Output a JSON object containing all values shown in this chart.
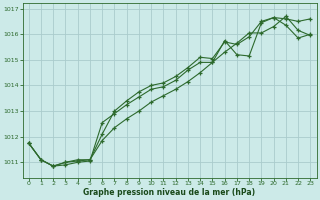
{
  "title": "Graphe pression niveau de la mer (hPa)",
  "bg_color": "#cceae8",
  "grid_color": "#aacccc",
  "line_color": "#2d6a2d",
  "xlabel_color": "#1a4a1a",
  "x_min": -0.5,
  "x_max": 23.5,
  "y_min": 1010.4,
  "y_max": 1017.2,
  "yticks": [
    1011,
    1012,
    1013,
    1014,
    1015,
    1016,
    1017
  ],
  "xticks": [
    0,
    1,
    2,
    3,
    4,
    5,
    6,
    7,
    8,
    9,
    10,
    11,
    12,
    13,
    14,
    15,
    16,
    17,
    18,
    19,
    20,
    21,
    22,
    23
  ],
  "series1_x": [
    0,
    1,
    2,
    3,
    4,
    5,
    6,
    7,
    8,
    9,
    10,
    11,
    12,
    13,
    14,
    15,
    16,
    17,
    18,
    19,
    20,
    21,
    22,
    23
  ],
  "series1_y": [
    1011.75,
    1011.1,
    1010.85,
    1010.9,
    1011.0,
    1011.05,
    1012.55,
    1012.9,
    1013.25,
    1013.55,
    1013.85,
    1013.95,
    1014.2,
    1014.6,
    1014.9,
    1014.9,
    1015.75,
    1015.2,
    1015.15,
    1016.45,
    1016.65,
    1016.35,
    1015.85,
    1016.0
  ],
  "series2_x": [
    0,
    1,
    2,
    3,
    4,
    5,
    6,
    7,
    8,
    9,
    10,
    11,
    12,
    13,
    14,
    15,
    16,
    17,
    18,
    19,
    20,
    21,
    22,
    23
  ],
  "series2_y": [
    1011.75,
    1011.1,
    1010.85,
    1011.0,
    1011.05,
    1011.1,
    1012.1,
    1013.0,
    1013.4,
    1013.75,
    1014.0,
    1014.1,
    1014.35,
    1014.7,
    1015.1,
    1015.05,
    1015.7,
    1015.6,
    1015.9,
    1016.5,
    1016.65,
    1016.6,
    1016.5,
    1016.6
  ],
  "series3_x": [
    0,
    1,
    2,
    3,
    4,
    5,
    6,
    7,
    8,
    9,
    10,
    11,
    12,
    13,
    14,
    15,
    16,
    17,
    18,
    19,
    20,
    21,
    22,
    23
  ],
  "series3_y": [
    1011.75,
    1011.1,
    1010.85,
    1011.0,
    1011.1,
    1011.1,
    1011.85,
    1012.35,
    1012.7,
    1013.0,
    1013.35,
    1013.6,
    1013.85,
    1014.15,
    1014.5,
    1014.9,
    1015.3,
    1015.65,
    1016.05,
    1016.05,
    1016.3,
    1016.7,
    1016.15,
    1015.95
  ]
}
